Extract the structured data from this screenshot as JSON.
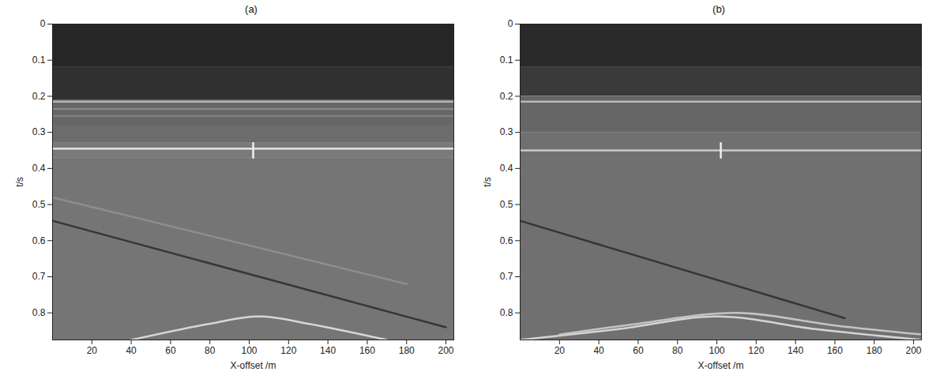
{
  "chart_data": [
    {
      "type": "image",
      "title": "(a)",
      "xlabel": "X-offset /m",
      "ylabel": "t/s",
      "xlim": [
        0,
        204
      ],
      "ylim": [
        0,
        0.875
      ],
      "xticks": [
        20,
        40,
        60,
        80,
        100,
        120,
        140,
        160,
        180,
        200
      ],
      "yticks": [
        0,
        0.1,
        0.2,
        0.3,
        0.4,
        0.5,
        0.6,
        0.7,
        0.8
      ],
      "bands": [
        {
          "t": [
            0,
            0.12
          ],
          "color": "#262626"
        },
        {
          "t": [
            0.12,
            0.21
          ],
          "color": "#303030"
        },
        {
          "t": [
            0.21,
            0.28
          ],
          "color": "#666666"
        },
        {
          "t": [
            0.28,
            0.33
          ],
          "color": "#6c6c6c"
        },
        {
          "t": [
            0.33,
            0.37
          ],
          "color": "#7a7a7a"
        },
        {
          "t": [
            0.37,
            0.875
          ],
          "color": "#757575"
        }
      ],
      "events": [
        {
          "x": [
            0,
            180
          ],
          "t": [
            0.48,
            0.72
          ],
          "color": "#8e8e8e"
        },
        {
          "x": [
            0,
            204
          ],
          "t": [
            0.215,
            0.215
          ],
          "color": "#b5b5b5"
        },
        {
          "x": [
            0,
            204
          ],
          "t": [
            0.235,
            0.235
          ],
          "color": "#888888"
        },
        {
          "x": [
            0,
            204
          ],
          "t": [
            0.255,
            0.255
          ],
          "color": "#7f7f7f"
        },
        {
          "x": [
            0,
            204
          ],
          "t": [
            0.345,
            0.345
          ],
          "color": "#e2e2e2"
        },
        {
          "x": [
            102,
            102
          ],
          "t": [
            0.33,
            0.37
          ],
          "color": "#f0f0f0"
        },
        {
          "x": [
            0,
            200
          ],
          "t": [
            0.545,
            0.84
          ],
          "color": "#363636"
        },
        {
          "x": [
            40,
            80,
            105,
            130,
            170
          ],
          "t": [
            0.875,
            0.83,
            0.81,
            0.83,
            0.875
          ],
          "color": "#d6d6d6"
        }
      ]
    },
    {
      "type": "image",
      "title": "(b)",
      "xlabel": "X-offset /m",
      "ylabel": "t/s",
      "xlim": [
        0,
        204
      ],
      "ylim": [
        0,
        0.875
      ],
      "xticks": [
        20,
        40,
        60,
        80,
        100,
        120,
        140,
        160,
        180,
        200
      ],
      "yticks": [
        0,
        0.1,
        0.2,
        0.3,
        0.4,
        0.5,
        0.6,
        0.7,
        0.8
      ],
      "bands": [
        {
          "t": [
            0,
            0.12
          ],
          "color": "#2a2a2a"
        },
        {
          "t": [
            0.12,
            0.2
          ],
          "color": "#3a3a3a"
        },
        {
          "t": [
            0.2,
            0.3
          ],
          "color": "#666666"
        },
        {
          "t": [
            0.3,
            0.875
          ],
          "color": "#707070"
        }
      ],
      "events": [
        {
          "x": [
            0,
            204
          ],
          "t": [
            0.215,
            0.215
          ],
          "color": "#b8b8b8"
        },
        {
          "x": [
            0,
            204
          ],
          "t": [
            0.35,
            0.35
          ],
          "color": "#c8c8c8"
        },
        {
          "x": [
            102,
            102
          ],
          "t": [
            0.33,
            0.37
          ],
          "color": "#eeeeee"
        },
        {
          "x": [
            0,
            165
          ],
          "t": [
            0.545,
            0.815
          ],
          "color": "#363636"
        },
        {
          "x": [
            0,
            50,
            100,
            150,
            204
          ],
          "t": [
            0.875,
            0.845,
            0.81,
            0.845,
            0.875
          ],
          "color": "#d4d4d4"
        },
        {
          "x": [
            20,
            60,
            110,
            160,
            204
          ],
          "t": [
            0.86,
            0.83,
            0.8,
            0.835,
            0.86
          ],
          "color": "#c4c4c4"
        }
      ]
    }
  ]
}
